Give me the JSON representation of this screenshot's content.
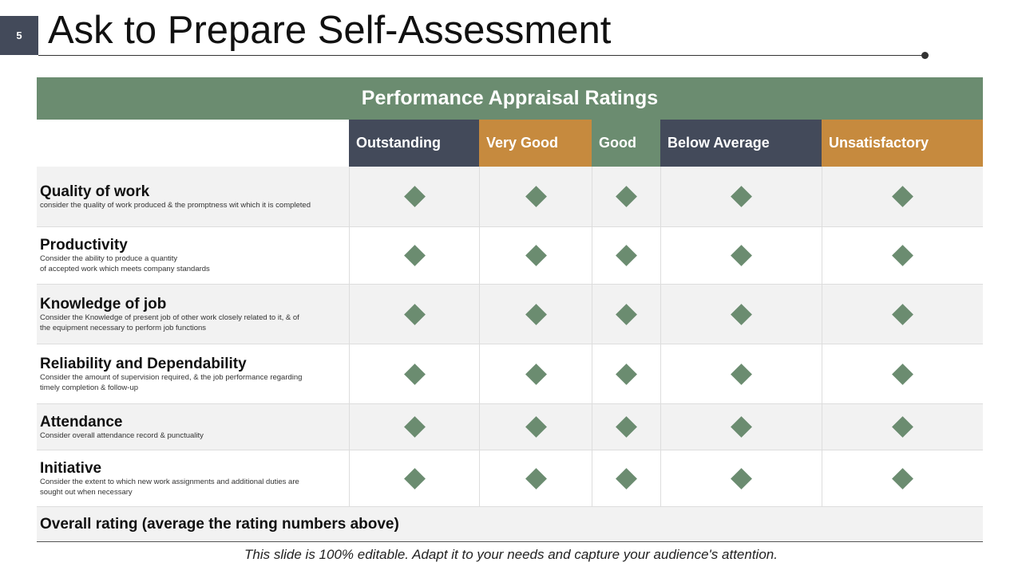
{
  "slide_number": "5",
  "title": "Ask to Prepare Self-Assessment",
  "table": {
    "banner": "Performance Appraisal Ratings",
    "columns": [
      {
        "label": "Outstanding",
        "color": "#434a5a"
      },
      {
        "label": "Very Good",
        "color": "#c68a3e"
      },
      {
        "label": "Good",
        "color": "#6b8c70"
      },
      {
        "label": "Below Average",
        "color": "#434a5a"
      },
      {
        "label": "Unsatisfactory",
        "color": "#c68a3e"
      }
    ],
    "rows": [
      {
        "name": "Quality of work",
        "desc": "consider the quality of work produced & the promptness wit which it is completed"
      },
      {
        "name": "Productivity",
        "desc": "Consider the ability to produce a quantity\nof accepted work which meets company standards"
      },
      {
        "name": "Knowledge of job",
        "desc": "Consider the Knowledge of present job of other work closely related to it, & of\nthe equipment necessary to perform job functions"
      },
      {
        "name": "Reliability and Dependability",
        "desc": "Consider the amount of supervision required, & the job performance regarding\ntimely completion & follow-up"
      },
      {
        "name": "Attendance",
        "desc": "Consider overall attendance record & punctuality"
      },
      {
        "name": "Initiative",
        "desc": "Consider the extent to which new work assignments and additional duties are\nsought out when necessary"
      }
    ],
    "overall": "Overall rating (average the rating numbers above)",
    "marker_icon": "diamond-icon",
    "marker_color": "#6b8c70"
  },
  "footer": "This slide is 100% editable. Adapt it to your needs and capture your audience's attention."
}
